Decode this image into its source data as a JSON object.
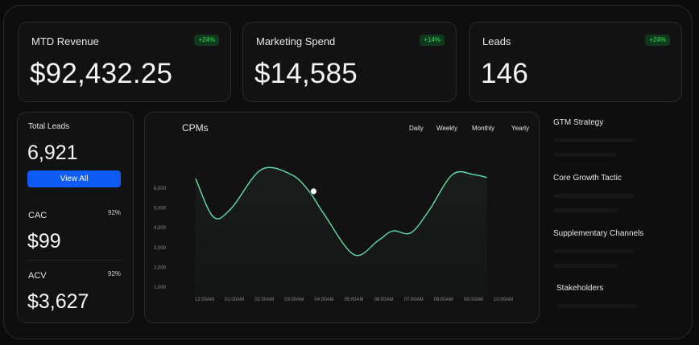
{
  "kpis": [
    {
      "title": "MTD Revenue",
      "value": "$92,432.25",
      "badge": "+24%"
    },
    {
      "title": "Marketing Spend",
      "value": "$14,585",
      "badge": "+14%"
    },
    {
      "title": "Leads",
      "value": "146",
      "badge": "+24%"
    }
  ],
  "leads_panel": {
    "total_label": "Total Leads",
    "total_value": "6,921",
    "view_all_label": "View All",
    "cac_label": "CAC",
    "cac_pct": "92%",
    "cac_value": "$99",
    "acv_label": "ACV",
    "acv_pct": "92%",
    "acv_value": "$3,627"
  },
  "chart_panel": {
    "title": "CPMs",
    "tabs": [
      "Daily",
      "Weekly",
      "Monthly",
      "Yearly"
    ]
  },
  "chart_data": {
    "type": "line",
    "title": "CPMs",
    "x": [
      "12:00AM",
      "01:00AM",
      "02:00AM",
      "03:00AM",
      "04:00AM",
      "05:00AM",
      "06:00AM",
      "07:00AM",
      "08:00AM",
      "09:00AM",
      "10:00AM"
    ],
    "y_ticks": [
      1000,
      2000,
      3000,
      4000,
      5000,
      6000
    ],
    "y_tick_labels": [
      "1,000",
      "2,000",
      "3,000",
      "4,000",
      "5,000",
      "6,000"
    ],
    "ylim": [
      1000,
      6000
    ],
    "series": [
      {
        "points": [
          [
            -0.3,
            6450
          ],
          [
            0.3,
            4500
          ],
          [
            0.9,
            4950
          ],
          [
            1.9,
            6900
          ],
          [
            2.9,
            6650
          ],
          [
            3.5,
            5800
          ],
          [
            4.0,
            4650
          ],
          [
            5.0,
            2600
          ],
          [
            5.8,
            3300
          ],
          [
            6.3,
            3800
          ],
          [
            6.9,
            3700
          ],
          [
            7.5,
            4800
          ],
          [
            8.3,
            6650
          ],
          [
            9.0,
            6650
          ],
          [
            9.45,
            6500
          ]
        ],
        "color": "#5ee0a9"
      }
    ],
    "highlight_point": [
      3.65,
      5800
    ],
    "grid": false,
    "line_color": "#5ee0a9"
  },
  "side_panel": {
    "items": [
      "GTM Strategy",
      "Core Growth Tactic",
      "Supplementary Channels",
      "Stakeholders"
    ]
  }
}
